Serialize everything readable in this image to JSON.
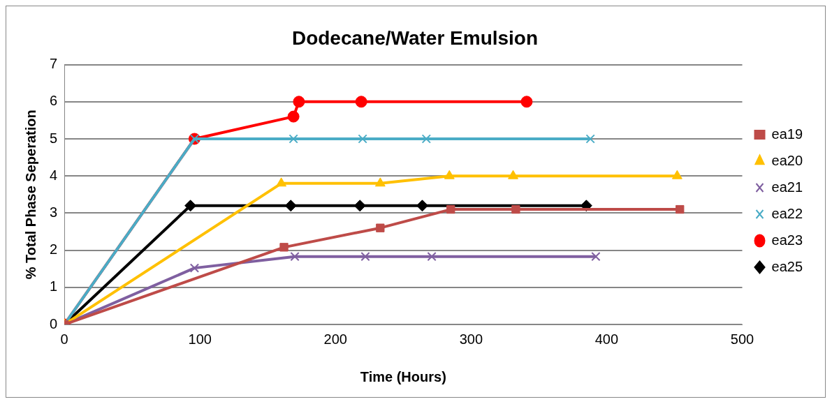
{
  "chart_data": {
    "type": "line",
    "title": "Dodecane/Water Emulsion",
    "xlabel": "Time (Hours)",
    "ylabel": "% Total Phase Seperation",
    "xlim": [
      0,
      500
    ],
    "xticks": [
      0,
      100,
      200,
      300,
      400,
      500
    ],
    "ylim": [
      0,
      7
    ],
    "yticks": [
      0,
      1,
      2,
      3,
      4,
      5,
      6,
      7
    ],
    "grid": "y",
    "legend": "right",
    "line_style": "solid",
    "series": [
      {
        "name": "ea19",
        "color": "#be4b48",
        "marker": "square",
        "x": [
          0,
          162,
          233,
          285,
          333,
          454
        ],
        "values": [
          0,
          2.08,
          2.6,
          3.1,
          3.1,
          3.1
        ]
      },
      {
        "name": "ea20",
        "color": "#ffc000",
        "marker": "triangle",
        "x": [
          0,
          160,
          233,
          284,
          331,
          452
        ],
        "values": [
          0,
          3.8,
          3.8,
          4,
          4,
          4
        ]
      },
      {
        "name": "ea21",
        "color": "#7f5fa0",
        "marker": "cross",
        "x": [
          0,
          96,
          170,
          222,
          271,
          392
        ],
        "values": [
          0,
          1.52,
          1.83,
          1.83,
          1.83,
          1.83
        ]
      },
      {
        "name": "ea22",
        "color": "#4aacc6",
        "marker": "cross",
        "x": [
          0,
          96,
          169,
          220,
          267,
          388
        ],
        "values": [
          0,
          5,
          5,
          5,
          5,
          5
        ]
      },
      {
        "name": "ea23",
        "color": "#ff0000",
        "marker": "circle",
        "x": [
          0,
          96,
          169,
          173,
          219,
          341
        ],
        "values": [
          0,
          5,
          5.6,
          6,
          6,
          6
        ]
      },
      {
        "name": "ea25",
        "color": "#000000",
        "marker": "diamond",
        "x": [
          0,
          93,
          167,
          218,
          264,
          385
        ],
        "values": [
          0,
          3.2,
          3.2,
          3.2,
          3.2,
          3.2
        ]
      }
    ]
  }
}
